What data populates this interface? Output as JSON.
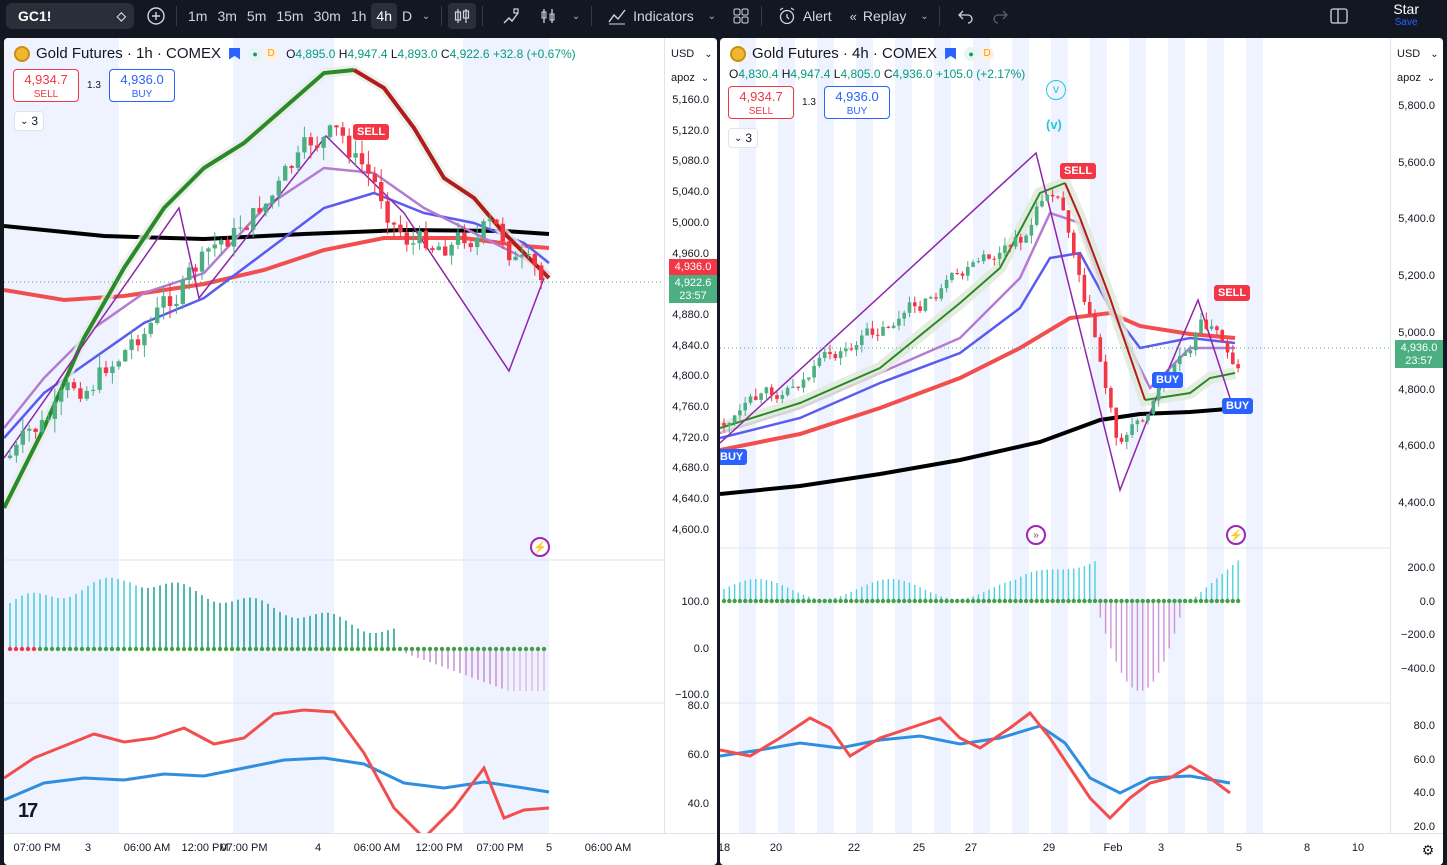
{
  "toolbar": {
    "symbol": "GC1!",
    "intervals": [
      "1m",
      "3m",
      "5m",
      "15m",
      "30m",
      "1h",
      "4h",
      "D"
    ],
    "active_interval": "4h",
    "indicators_label": "Indicators",
    "alert_label": "Alert",
    "replay_label": "Replay",
    "user_name": "Star",
    "save_label": "Save"
  },
  "colors": {
    "up": "#4caf82",
    "down": "#f23645",
    "accent": "#2962ff"
  },
  "left": {
    "title": "Gold Futures · 1h · COMEX",
    "ohlc": {
      "o": "4,895.0",
      "h": "4,947.4",
      "l": "4,893.0",
      "c": "4,922.6",
      "chg": "+32.8 (+0.67%)"
    },
    "sell_price": "4,934.7",
    "sell_label": "SELL",
    "buy_price": "4,936.0",
    "buy_label": "BUY",
    "spread": "1.3",
    "collapse_count": "3",
    "currency": "USD",
    "scale_mode": "apoz",
    "price_ticks": [
      "5,160.0",
      "5,120.0",
      "5,080.0",
      "5,040.0",
      "5,000.0",
      "4,960.0",
      "4,920.0",
      "4,880.0",
      "4,840.0",
      "4,800.0",
      "4,760.0",
      "4,720.0",
      "4,680.0",
      "4,640.0",
      "4,600.0"
    ],
    "last_buy_tag": "4,936.0",
    "last_price_tag": "4,922.6",
    "countdown": "23:57",
    "macd_ticks": [
      "100.0",
      "0.0",
      "−100.0"
    ],
    "rsi_ticks": [
      "80.0",
      "60.0",
      "40.0"
    ],
    "time_ticks": [
      "07:00 PM",
      "3",
      "06:00 AM",
      "12:00 PM",
      "07:00 PM",
      "4",
      "06:00 AM",
      "12:00 PM",
      "07:00 PM",
      "5",
      "06:00 AM"
    ],
    "signal_sell": "SELL"
  },
  "right": {
    "title": "Gold Futures · 4h · COMEX",
    "ohlc": {
      "o": "4,830.4",
      "h": "4,947.4",
      "l": "4,805.0",
      "c": "4,936.0",
      "chg": "+105.0 (+2.17%)"
    },
    "sell_price": "4,934.7",
    "sell_label": "SELL",
    "buy_price": "4,936.0",
    "buy_label": "BUY",
    "spread": "1.3",
    "collapse_count": "3",
    "currency": "USD",
    "scale_mode": "apoz",
    "price_ticks": [
      "5,800.0",
      "5,600.0",
      "5,400.0",
      "5,200.0",
      "5,000.0",
      "4,800.0",
      "4,600.0",
      "4,400.0"
    ],
    "last_price_tag": "4,936.0",
    "countdown": "23:57",
    "macd_ticks": [
      "200.0",
      "0.0",
      "−200.0",
      "−400.0"
    ],
    "rsi_ticks": [
      "80.0",
      "60.0",
      "40.0",
      "20.0"
    ],
    "time_ticks": [
      "18",
      "20",
      "22",
      "25",
      "27",
      "29",
      "Feb",
      "3",
      "5",
      "8",
      "10"
    ],
    "signal_sell_1": "SELL",
    "signal_sell_2": "SELL",
    "signal_buy_1": "BUY",
    "signal_buy_2": "BUY",
    "signal_buy_3": "BUY",
    "wave_label_1": "v",
    "wave_label_2": "(v)"
  }
}
